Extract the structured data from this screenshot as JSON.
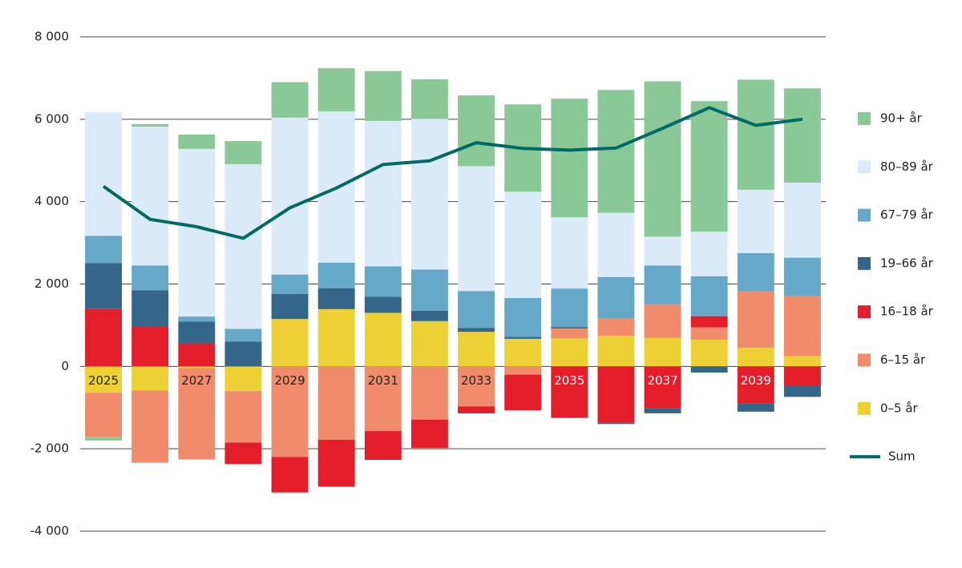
{
  "chart_data": {
    "type": "bar",
    "stacked": true,
    "categories": [
      "2025",
      null,
      "2027",
      null,
      "2029",
      null,
      "2031",
      null,
      "2033",
      null,
      "2035",
      null,
      "2037",
      null,
      "2039",
      null
    ],
    "ylim": [
      -4000,
      8000
    ],
    "yticks": [
      {
        "value": -4000,
        "label": "-4 000"
      },
      {
        "value": -2000,
        "label": "-2 000"
      },
      0,
      {
        "value": 2000,
        "label": "2 000"
      },
      {
        "value": 4000,
        "label": "4 000"
      },
      {
        "value": 6000,
        "label": "6 000"
      },
      {
        "value": 8000,
        "label": "8 000"
      }
    ],
    "grid": true,
    "legend": "right",
    "series": [
      {
        "name": "0–5 år",
        "color": "#ecd034",
        "values": [
          -640,
          -580,
          -40,
          -600,
          1150,
          1390,
          1300,
          1100,
          840,
          670,
          680,
          740,
          690,
          650,
          450,
          250
        ]
      },
      {
        "name": "6–15 år",
        "color": "#f08c6c",
        "values": [
          -1070,
          -1760,
          -2220,
          -1250,
          -2200,
          -1780,
          -1570,
          -1290,
          -970,
          -200,
          240,
          420,
          810,
          300,
          1370,
          1460
        ]
      },
      {
        "name": "16–18 år",
        "color": "#e31e2a",
        "values": [
          1400,
          970,
          560,
          -520,
          -860,
          -1140,
          -700,
          -690,
          -170,
          -870,
          -1250,
          -1360,
          -1010,
          270,
          -900,
          -470
        ]
      },
      {
        "name": "19–66 år",
        "color": "#336688",
        "values": [
          1110,
          880,
          530,
          600,
          610,
          510,
          390,
          250,
          90,
          50,
          30,
          -40,
          -130,
          -150,
          -200,
          -270
        ]
      },
      {
        "name": "67–79 år",
        "color": "#66a8c8",
        "values": [
          660,
          600,
          120,
          310,
          470,
          620,
          740,
          1000,
          900,
          940,
          940,
          1010,
          950,
          970,
          930,
          930
        ]
      },
      {
        "name": "80–89 år",
        "color": "#dbeaf8",
        "values": [
          3000,
          3370,
          4070,
          4000,
          3810,
          3670,
          3530,
          3660,
          3030,
          2580,
          1730,
          1560,
          700,
          1080,
          1540,
          1820
        ]
      },
      {
        "name": "90+ år",
        "color": "#8ac898",
        "values": [
          -90,
          60,
          350,
          560,
          860,
          1050,
          1210,
          960,
          1720,
          2120,
          2880,
          2980,
          3770,
          3170,
          2670,
          2290
        ]
      },
      {
        "name": "Sum",
        "type": "line",
        "color": "#006b66",
        "values": [
          4370,
          3570,
          3390,
          3110,
          3850,
          4330,
          4900,
          4990,
          5430,
          5290,
          5250,
          5300,
          5780,
          6280,
          5850,
          6000
        ]
      }
    ]
  }
}
